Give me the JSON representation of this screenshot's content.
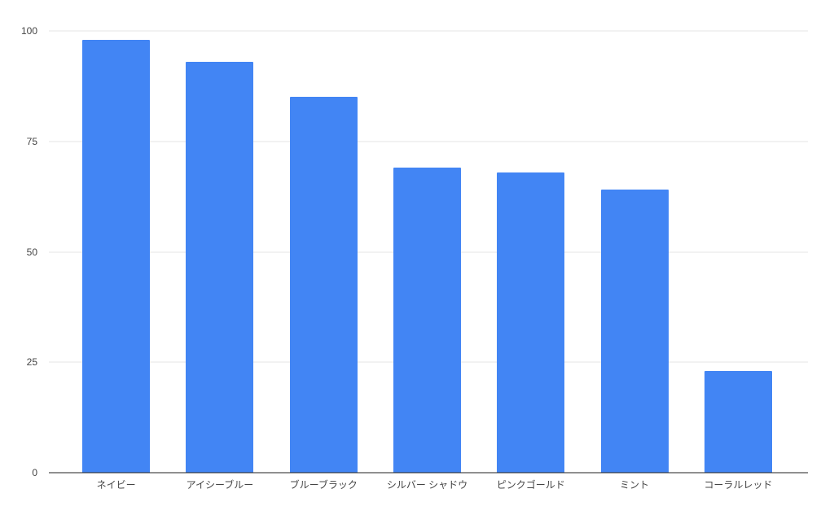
{
  "chart_data": {
    "type": "bar",
    "title": "",
    "xlabel": "",
    "ylabel": "",
    "categories": [
      "ネイビー",
      "アイシーブルー",
      "ブルーブラック",
      "シルバー シャドウ",
      "ピンクゴールド",
      "ミント",
      "コーラルレッド"
    ],
    "values": [
      98,
      93,
      85,
      69,
      68,
      64,
      23
    ],
    "ylim": [
      0,
      100
    ],
    "yticks": [
      0,
      25,
      50,
      75,
      100
    ],
    "grid": true,
    "legend": false,
    "colors": {
      "bar": "#4285f4",
      "gridline": "#e6e6e6",
      "axis_line": "#212121",
      "tick_label": "#444444",
      "background": "#ffffff"
    }
  }
}
